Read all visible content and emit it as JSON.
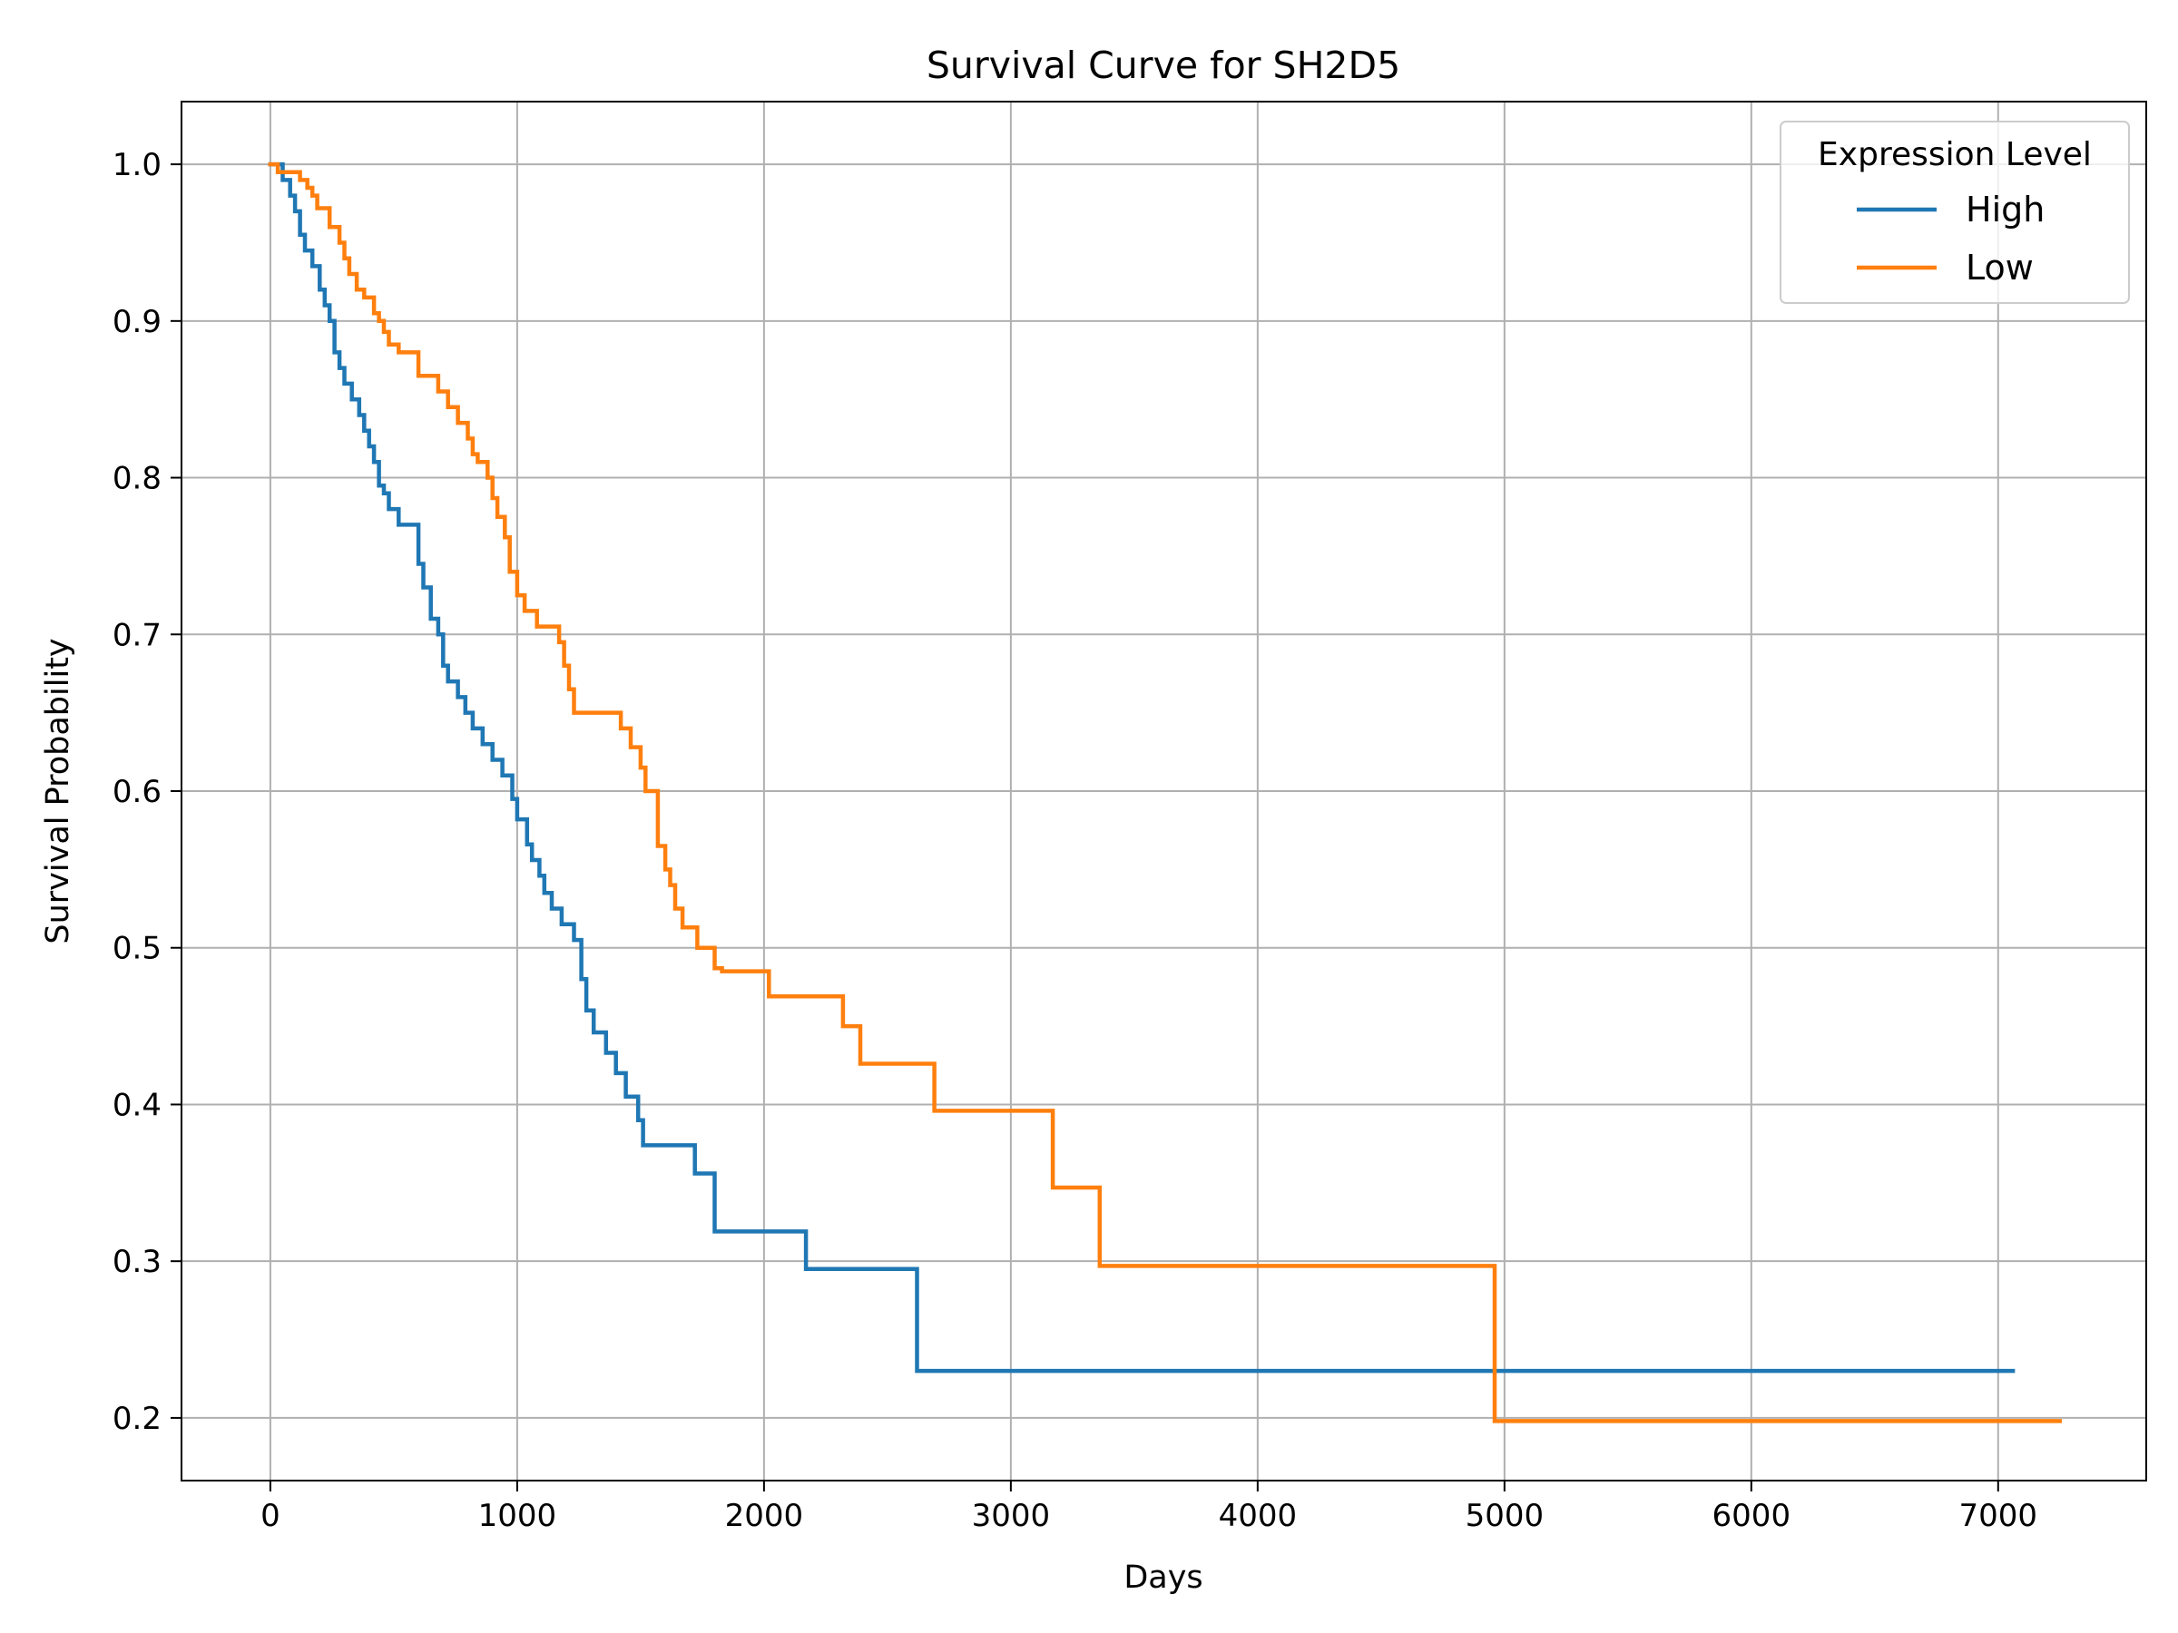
{
  "chart_data": {
    "type": "line",
    "title": "Survival Curve for SH2D5",
    "xlabel": "Days",
    "ylabel": "Survival Probability",
    "xlim": [
      -360,
      7600
    ],
    "ylim": [
      0.16,
      1.04
    ],
    "xticks": [
      0,
      1000,
      2000,
      3000,
      4000,
      5000,
      6000,
      7000
    ],
    "yticks": [
      0.2,
      0.3,
      0.4,
      0.5,
      0.6,
      0.7,
      0.8,
      0.9,
      1.0
    ],
    "xtick_labels": [
      "0",
      "1000",
      "2000",
      "3000",
      "4000",
      "5000",
      "6000",
      "7000"
    ],
    "ytick_labels": [
      "0.2",
      "0.3",
      "0.4",
      "0.5",
      "0.6",
      "0.7",
      "0.8",
      "0.9",
      "1.0"
    ],
    "grid": true,
    "legend": {
      "title": "Expression Level",
      "placement": "top-right"
    },
    "series": [
      {
        "name": "High",
        "color": "#1f77b4",
        "x": [
          0,
          50,
          80,
          100,
          120,
          140,
          170,
          200,
          220,
          240,
          260,
          280,
          300,
          330,
          360,
          380,
          400,
          420,
          440,
          460,
          480,
          520,
          600,
          620,
          650,
          680,
          700,
          720,
          760,
          790,
          820,
          860,
          900,
          940,
          980,
          1000,
          1040,
          1060,
          1090,
          1110,
          1140,
          1180,
          1230,
          1260,
          1280,
          1310,
          1360,
          1400,
          1440,
          1490,
          1510,
          1720,
          1800,
          2170,
          2620,
          7060
        ],
        "y": [
          1.0,
          0.99,
          0.98,
          0.97,
          0.955,
          0.945,
          0.935,
          0.92,
          0.91,
          0.9,
          0.88,
          0.87,
          0.86,
          0.85,
          0.84,
          0.83,
          0.82,
          0.81,
          0.795,
          0.79,
          0.78,
          0.77,
          0.745,
          0.73,
          0.71,
          0.7,
          0.68,
          0.67,
          0.66,
          0.65,
          0.64,
          0.63,
          0.62,
          0.61,
          0.595,
          0.582,
          0.566,
          0.556,
          0.546,
          0.535,
          0.525,
          0.515,
          0.505,
          0.48,
          0.46,
          0.446,
          0.433,
          0.42,
          0.405,
          0.39,
          0.374,
          0.356,
          0.319,
          0.295,
          0.23,
          0.23
        ]
      },
      {
        "name": "Low",
        "color": "#ff7f0e",
        "x": [
          0,
          30,
          120,
          150,
          170,
          190,
          240,
          280,
          300,
          320,
          350,
          380,
          420,
          440,
          460,
          480,
          520,
          600,
          680,
          720,
          760,
          800,
          820,
          840,
          880,
          900,
          920,
          950,
          970,
          1000,
          1030,
          1080,
          1170,
          1190,
          1210,
          1230,
          1420,
          1460,
          1500,
          1520,
          1570,
          1600,
          1620,
          1640,
          1670,
          1730,
          1800,
          1830,
          2020,
          2320,
          2390,
          2690,
          3170,
          3360,
          4960,
          7250
        ],
        "y": [
          1.0,
          0.995,
          0.99,
          0.985,
          0.98,
          0.972,
          0.96,
          0.95,
          0.94,
          0.93,
          0.92,
          0.915,
          0.905,
          0.9,
          0.893,
          0.885,
          0.88,
          0.865,
          0.855,
          0.845,
          0.835,
          0.825,
          0.815,
          0.81,
          0.8,
          0.787,
          0.775,
          0.762,
          0.74,
          0.725,
          0.715,
          0.705,
          0.695,
          0.68,
          0.665,
          0.65,
          0.64,
          0.628,
          0.615,
          0.6,
          0.565,
          0.55,
          0.54,
          0.525,
          0.513,
          0.5,
          0.487,
          0.485,
          0.469,
          0.45,
          0.426,
          0.396,
          0.347,
          0.297,
          0.198,
          0.198
        ]
      }
    ]
  }
}
